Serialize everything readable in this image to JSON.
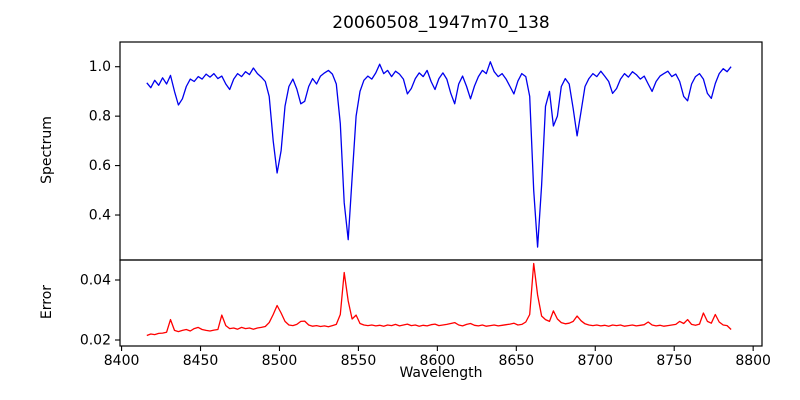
{
  "chart_data": {
    "type": "line",
    "title": "20060508_1947m70_138",
    "xlabel": "Wavelength",
    "xlim": [
      8399,
      8805.6
    ],
    "xticks": [
      8400,
      8450,
      8500,
      8550,
      8600,
      8650,
      8700,
      8750,
      8800
    ],
    "xtick_labels": [
      "8400",
      "8450",
      "8500",
      "8550",
      "8600",
      "8650",
      "8700",
      "8750",
      "8800"
    ],
    "grid": false,
    "legend": "none",
    "line_colors": {
      "spectrum": "#0000ee",
      "error": "#ff0000"
    },
    "x": [
      8416,
      8418.5,
      8421,
      8423.5,
      8426,
      8428.5,
      8431,
      8433.5,
      8436,
      8438.5,
      8441,
      8443.5,
      8446,
      8448.5,
      8451,
      8453.5,
      8456,
      8458.5,
      8461,
      8463.5,
      8466,
      8468.5,
      8471,
      8473.5,
      8476,
      8478.5,
      8481,
      8483.5,
      8486,
      8488.5,
      8491,
      8493.5,
      8496,
      8498.5,
      8501,
      8503.5,
      8506,
      8508.5,
      8511,
      8513.5,
      8516,
      8518.5,
      8521,
      8523.5,
      8526,
      8528.5,
      8531,
      8533.5,
      8536,
      8538.5,
      8541,
      8543.5,
      8546,
      8548.5,
      8551,
      8553.5,
      8556,
      8558.5,
      8561,
      8563.5,
      8566,
      8568.5,
      8571,
      8573.5,
      8576,
      8578.5,
      8581,
      8583.5,
      8586,
      8588.5,
      8591,
      8593.5,
      8596,
      8598.5,
      8601,
      8603.5,
      8606,
      8608.5,
      8611,
      8613.5,
      8616,
      8618.5,
      8621,
      8623.5,
      8626,
      8628.5,
      8631,
      8633.5,
      8636,
      8638.5,
      8641,
      8643.5,
      8646,
      8648.5,
      8651,
      8653.5,
      8656,
      8658.5,
      8661,
      8663.5,
      8666,
      8668.5,
      8671,
      8673.5,
      8676,
      8678.5,
      8681,
      8683.5,
      8686,
      8688.5,
      8691,
      8693.5,
      8696,
      8698.5,
      8701,
      8703.5,
      8706,
      8708.5,
      8711,
      8713.5,
      8716,
      8718.5,
      8721,
      8723.5,
      8726,
      8728.5,
      8731,
      8733.5,
      8736,
      8738.5,
      8741,
      8743.5,
      8746,
      8748.5,
      8751,
      8753.5,
      8756,
      8758.5,
      8761,
      8763.5,
      8766,
      8768.5,
      8771,
      8773.5,
      8776,
      8778.5,
      8781,
      8783.5,
      8786
    ],
    "panels": [
      {
        "name": "spectrum",
        "ylabel": "Spectrum",
        "ylim": [
          0.218,
          1.1
        ],
        "yticks": [
          0.4,
          0.6,
          0.8,
          1.0
        ],
        "ytick_labels": [
          "0.4",
          "0.6",
          "0.8",
          "1.0"
        ],
        "absorption_line_centers": [
          8435,
          8498,
          8514,
          8542,
          8610,
          8662,
          8674,
          8688
        ],
        "series": [
          {
            "name": "spectrum",
            "color": "#0000ee",
            "y": [
              0.935,
              0.915,
              0.945,
              0.925,
              0.955,
              0.93,
              0.965,
              0.9,
              0.845,
              0.87,
              0.92,
              0.95,
              0.94,
              0.96,
              0.95,
              0.97,
              0.958,
              0.972,
              0.952,
              0.962,
              0.93,
              0.908,
              0.95,
              0.972,
              0.96,
              0.98,
              0.968,
              0.995,
              0.972,
              0.958,
              0.94,
              0.88,
              0.7,
              0.57,
              0.66,
              0.84,
              0.92,
              0.95,
              0.91,
              0.85,
              0.86,
              0.92,
              0.952,
              0.93,
              0.962,
              0.975,
              0.985,
              0.97,
              0.93,
              0.77,
              0.45,
              0.3,
              0.55,
              0.8,
              0.9,
              0.945,
              0.962,
              0.95,
              0.975,
              1.01,
              0.972,
              0.985,
              0.96,
              0.982,
              0.97,
              0.95,
              0.89,
              0.912,
              0.952,
              0.975,
              0.96,
              0.985,
              0.94,
              0.908,
              0.952,
              0.975,
              0.95,
              0.892,
              0.85,
              0.93,
              0.962,
              0.92,
              0.87,
              0.922,
              0.96,
              0.985,
              0.972,
              1.02,
              0.98,
              0.96,
              0.972,
              0.95,
              0.92,
              0.89,
              0.942,
              0.972,
              0.96,
              0.88,
              0.5,
              0.27,
              0.52,
              0.84,
              0.9,
              0.76,
              0.8,
              0.92,
              0.952,
              0.93,
              0.83,
              0.72,
              0.82,
              0.92,
              0.952,
              0.972,
              0.96,
              0.982,
              0.962,
              0.94,
              0.892,
              0.912,
              0.95,
              0.972,
              0.958,
              0.98,
              0.968,
              0.95,
              0.962,
              0.93,
              0.9,
              0.94,
              0.962,
              0.972,
              0.982,
              0.96,
              0.97,
              0.94,
              0.88,
              0.862,
              0.93,
              0.96,
              0.972,
              0.95,
              0.892,
              0.872,
              0.932,
              0.972,
              0.992,
              0.98,
              1.0
            ]
          }
        ]
      },
      {
        "name": "error",
        "ylabel": "Error",
        "ylim": [
          0.018,
          0.046667
        ],
        "yticks": [
          0.02,
          0.04
        ],
        "ytick_labels": [
          "0.02",
          "0.04"
        ],
        "peak_centers": [
          8431,
          8464,
          8498,
          8542,
          8662,
          8674,
          8688,
          8767
        ],
        "series": [
          {
            "name": "error",
            "color": "#ff0000",
            "y": [
              0.0215,
              0.022,
              0.0218,
              0.0222,
              0.0223,
              0.0226,
              0.0268,
              0.0232,
              0.0228,
              0.0232,
              0.0235,
              0.023,
              0.0238,
              0.0242,
              0.0235,
              0.0232,
              0.023,
              0.0233,
              0.0235,
              0.0283,
              0.0248,
              0.0238,
              0.024,
              0.0236,
              0.0242,
              0.0238,
              0.024,
              0.0236,
              0.024,
              0.0242,
              0.0245,
              0.0258,
              0.0285,
              0.0315,
              0.029,
              0.0262,
              0.025,
              0.0248,
              0.0252,
              0.0262,
              0.0263,
              0.025,
              0.0246,
              0.0248,
              0.0245,
              0.0247,
              0.0244,
              0.0248,
              0.0252,
              0.0285,
              0.0425,
              0.033,
              0.027,
              0.0283,
              0.0255,
              0.025,
              0.0248,
              0.025,
              0.0247,
              0.0249,
              0.0246,
              0.025,
              0.0248,
              0.0252,
              0.0247,
              0.025,
              0.0253,
              0.0248,
              0.025,
              0.0246,
              0.0249,
              0.0247,
              0.0251,
              0.0253,
              0.0248,
              0.025,
              0.0252,
              0.0255,
              0.0258,
              0.025,
              0.0247,
              0.0252,
              0.0255,
              0.0249,
              0.0247,
              0.025,
              0.0246,
              0.0248,
              0.025,
              0.0247,
              0.0249,
              0.0251,
              0.0253,
              0.0256,
              0.025,
              0.0252,
              0.026,
              0.0285,
              0.0455,
              0.035,
              0.028,
              0.0268,
              0.0262,
              0.0297,
              0.027,
              0.0258,
              0.0254,
              0.0256,
              0.0262,
              0.028,
              0.0264,
              0.0254,
              0.025,
              0.0248,
              0.025,
              0.0247,
              0.0249,
              0.0246,
              0.025,
              0.0248,
              0.025,
              0.0246,
              0.0248,
              0.025,
              0.0247,
              0.0249,
              0.0251,
              0.026,
              0.025,
              0.0247,
              0.0249,
              0.0246,
              0.0248,
              0.025,
              0.0252,
              0.0262,
              0.0255,
              0.0268,
              0.0252,
              0.0249,
              0.0253,
              0.029,
              0.0262,
              0.0256,
              0.0285,
              0.026,
              0.025,
              0.0248,
              0.0235
            ]
          }
        ]
      }
    ]
  }
}
